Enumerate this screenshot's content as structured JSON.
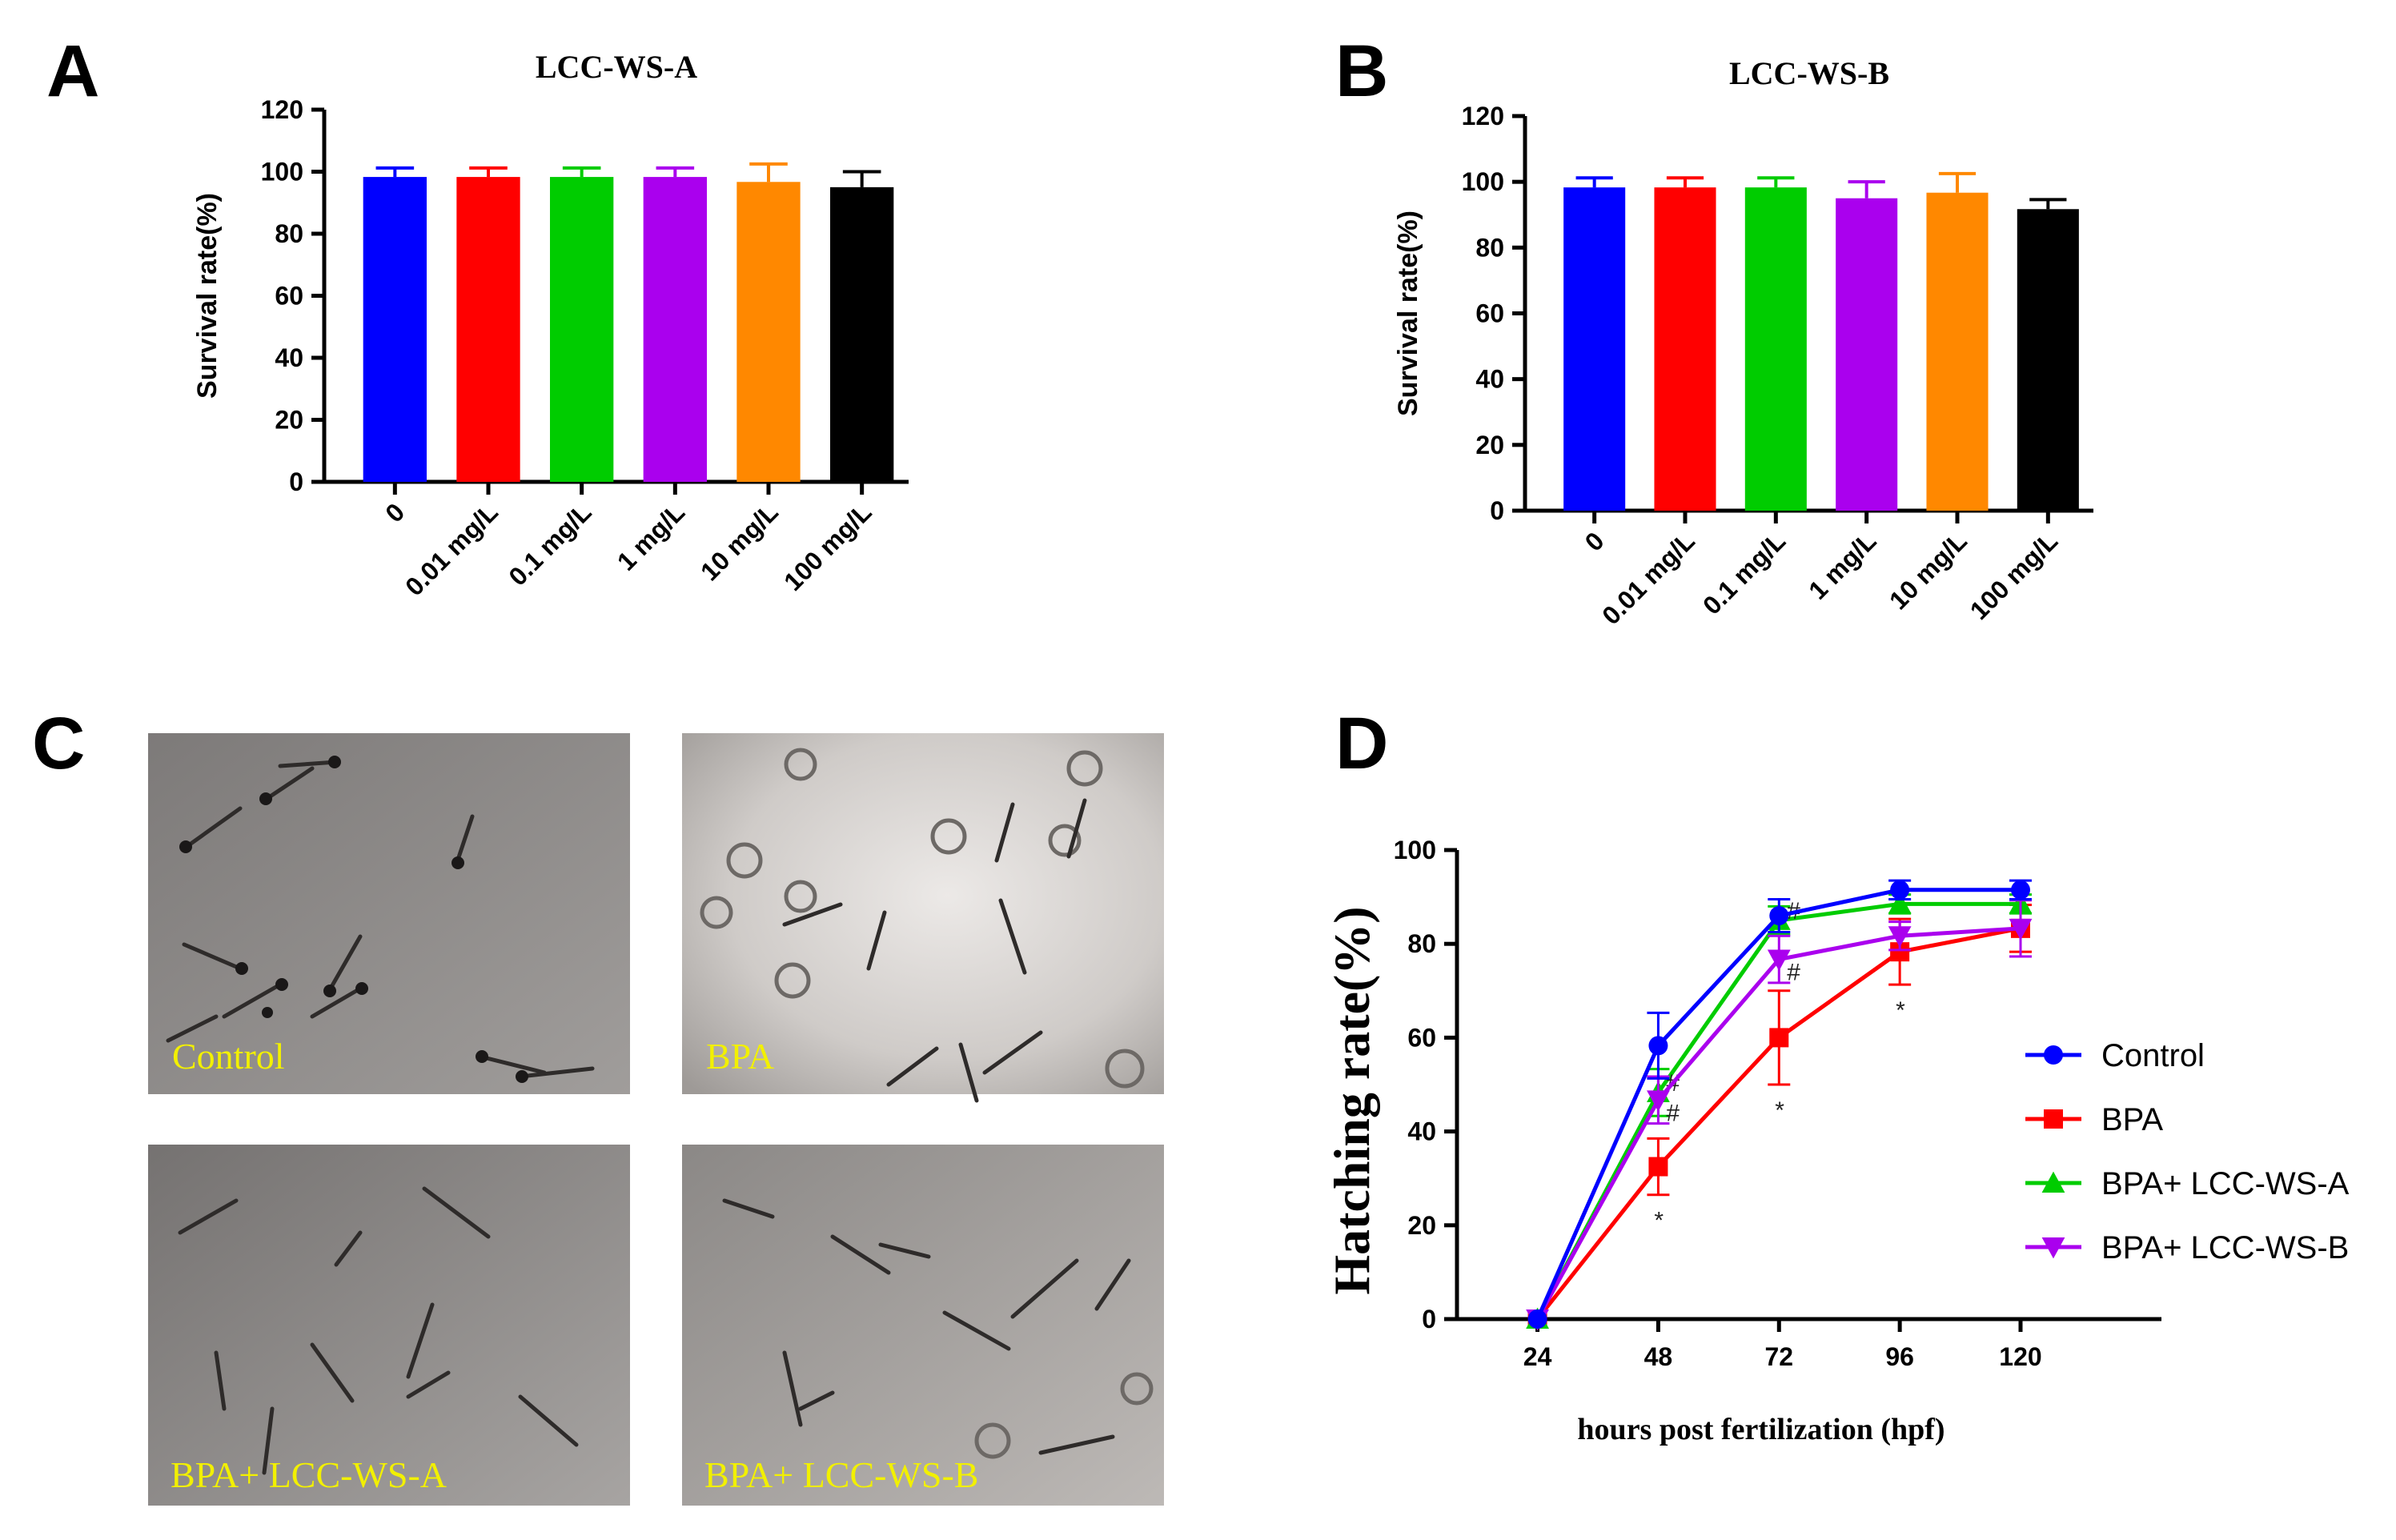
{
  "panels": {
    "A": "A",
    "B": "B",
    "C": "C",
    "D": "D"
  },
  "photo_labels": [
    "Control",
    "BPA",
    "BPA+ LCC-WS-A",
    "BPA+ LCC-WS-B"
  ],
  "chart_data": [
    {
      "id": "A",
      "type": "bar",
      "title": "LCC-WS-A",
      "ylabel": "Survival rate(%)",
      "xlabel": "",
      "ylim": [
        0,
        120
      ],
      "yticks": [
        0,
        20,
        40,
        60,
        80,
        100,
        120
      ],
      "categories": [
        "0",
        "0.01 mg/L",
        "0.1 mg/L",
        "1 mg/L",
        "10 mg/L",
        "100 mg/L"
      ],
      "values": [
        98.3,
        98.3,
        98.3,
        98.3,
        96.7,
        95.0
      ],
      "errors": [
        2.9,
        2.9,
        2.9,
        2.9,
        5.8,
        5.0
      ],
      "colors": [
        "#0000ff",
        "#ff0000",
        "#00cc00",
        "#aa00ee",
        "#ff8800",
        "#000000"
      ]
    },
    {
      "id": "B",
      "type": "bar",
      "title": "LCC-WS-B",
      "ylabel": "Survival rate(%)",
      "xlabel": "",
      "ylim": [
        0,
        120
      ],
      "yticks": [
        0,
        20,
        40,
        60,
        80,
        100,
        120
      ],
      "categories": [
        "0",
        "0.01 mg/L",
        "0.1 mg/L",
        "1 mg/L",
        "10 mg/L",
        "100 mg/L"
      ],
      "values": [
        98.3,
        98.3,
        98.3,
        95.0,
        96.7,
        91.7
      ],
      "errors": [
        2.9,
        2.9,
        2.9,
        5.0,
        5.8,
        2.9
      ],
      "colors": [
        "#0000ff",
        "#ff0000",
        "#00cc00",
        "#aa00ee",
        "#ff8800",
        "#000000"
      ]
    },
    {
      "id": "D",
      "type": "line",
      "title": "",
      "ylabel": "Hatching rate(%)",
      "xlabel": "hours post fertilization (hpf)",
      "ylim": [
        0,
        100
      ],
      "yticks": [
        0,
        20,
        40,
        60,
        80,
        100
      ],
      "x": [
        24,
        48,
        72,
        96,
        120
      ],
      "legend_position": "right",
      "series": [
        {
          "name": "Control",
          "color": "#0000ff",
          "marker": "circle",
          "values": [
            0,
            58.3,
            86.0,
            91.5,
            91.5
          ],
          "errors": [
            0,
            7.0,
            3.5,
            2.0,
            2.0
          ],
          "annotations": [
            "",
            "",
            "",
            "",
            ""
          ]
        },
        {
          "name": "BPA",
          "color": "#ff0000",
          "marker": "square",
          "values": [
            0,
            32.5,
            60.0,
            78.3,
            83.3
          ],
          "errors": [
            0,
            6.0,
            10.0,
            7.0,
            5.0
          ],
          "annotations": [
            "",
            "*",
            "*",
            "*",
            ""
          ]
        },
        {
          "name": "BPA+ LCC-WS-A",
          "color": "#00cc00",
          "marker": "triangle-up",
          "values": [
            0,
            48.3,
            85.0,
            88.5,
            88.5
          ],
          "errors": [
            0,
            5.0,
            3.0,
            2.0,
            2.0
          ],
          "annotations": [
            "",
            "#",
            "#",
            "",
            ""
          ]
        },
        {
          "name": "BPA+ LCC-WS-B",
          "color": "#aa00ee",
          "marker": "triangle-down",
          "values": [
            0,
            46.7,
            76.7,
            81.7,
            83.3
          ],
          "errors": [
            0,
            5.0,
            5.0,
            3.0,
            6.0
          ],
          "annotations": [
            "",
            "#",
            "#",
            "",
            ""
          ]
        }
      ]
    }
  ]
}
